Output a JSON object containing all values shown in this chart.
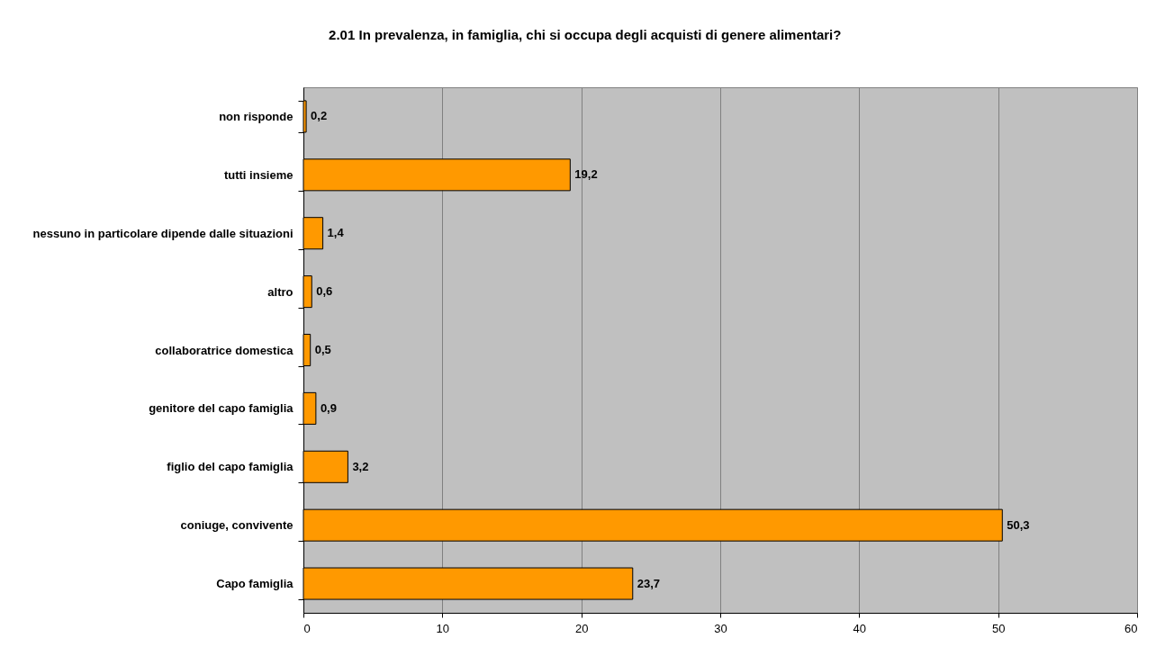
{
  "chart_data": {
    "type": "bar",
    "orientation": "horizontal",
    "title": "2.01 In prevalenza, in famiglia, chi si occupa degli acquisti di genere alimentari?",
    "categories": [
      "non risponde",
      "tutti insieme",
      "nessuno in particolare dipende dalle situazioni",
      "altro",
      "collaboratrice domestica",
      "genitore del capo famiglia",
      "figlio del capo famiglia",
      "coniuge, convivente",
      "Capo famiglia"
    ],
    "values": [
      0.2,
      19.2,
      1.4,
      0.6,
      0.5,
      0.9,
      3.2,
      50.3,
      23.7
    ],
    "value_labels": [
      "0,2",
      "19,2",
      "1,4",
      "0,6",
      "0,5",
      "0,9",
      "3,2",
      "50,3",
      "23,7"
    ],
    "color": "#ff9900",
    "xlim": [
      0,
      60
    ],
    "xticks": [
      0,
      10,
      20,
      30,
      40,
      50,
      60
    ],
    "grid": "x"
  }
}
